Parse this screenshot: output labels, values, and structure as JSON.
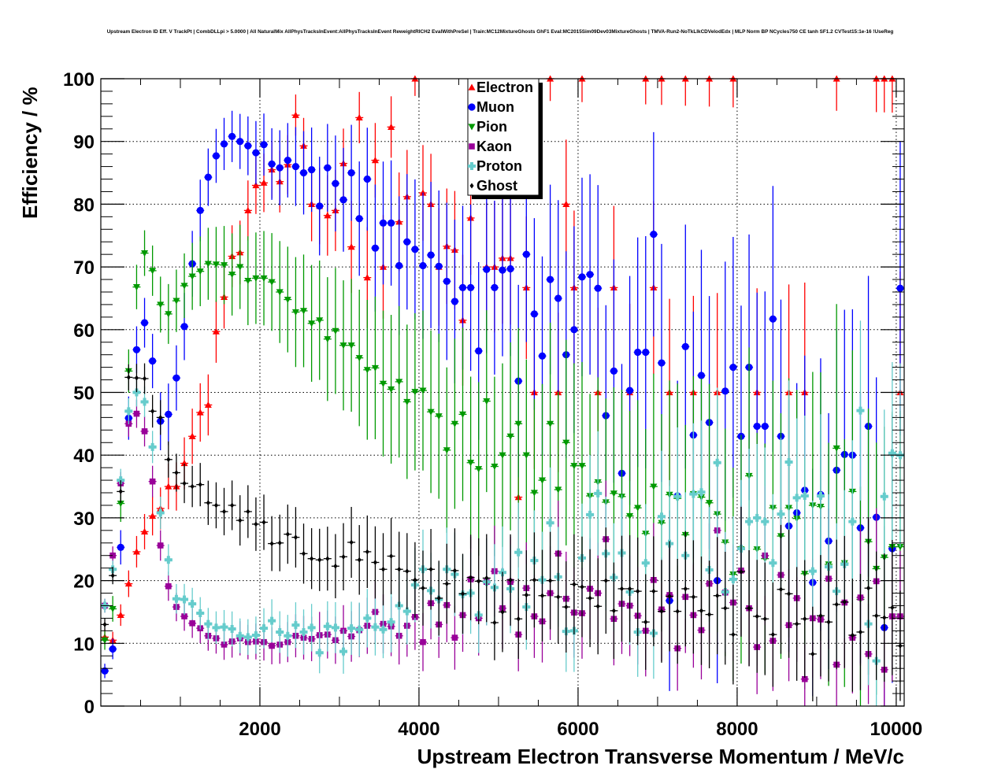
{
  "chart_data": {
    "type": "scatter",
    "title": "Upstream Electron ID Eff. V TrackPt | CombDLLpi > 5.0000 | All NaturalMix AllPhysTracksInEvent:AllPhysTracksInEvent ReweightRICH2 EvalWithPreSel | Train:MC12MixtureGhosts GhF1 Eval:MC2015Sim09Dev03MixtureGhosts | TMVA-Run2-NoTkLlkCDVelodEdx | MLP Norm BP NCycles750 CE tanh SF1.2 CVTest15:1e-16 !UseReg",
    "xlabel": "Upstream Electron Transverse Momentum / MeV/c",
    "ylabel": "Efficiency / %",
    "xlim": [
      0,
      10100
    ],
    "ylim": [
      0,
      100
    ],
    "x_ticks": [
      "2000",
      "4000",
      "6000",
      "8000",
      "10000"
    ],
    "y_ticks": [
      "0",
      "10",
      "20",
      "30",
      "40",
      "50",
      "60",
      "70",
      "80",
      "90",
      "100"
    ],
    "grid": true,
    "legend_position": "top-center",
    "bin_width": 100,
    "x_first_bin_center": 50,
    "series": [
      {
        "name": "Electron",
        "color": "#ff0000",
        "marker": "triangle-up",
        "values": [
          11,
          10.5,
          14.5,
          19.5,
          24.6,
          27.8,
          30.3,
          31.5,
          35,
          35,
          38.7,
          43,
          46.8,
          48,
          59.7,
          65.2,
          71.7,
          72.3,
          79,
          83,
          83.4,
          85.5,
          83.6,
          86.3,
          94.2,
          89.3,
          80,
          79.7,
          78.2,
          79,
          86.5,
          73.2,
          93.8,
          68.3,
          87,
          70,
          92.3,
          77.2,
          81.2,
          100,
          81.8,
          80,
          70,
          73.3,
          72.7,
          61.5,
          77.8,
          null,
          70,
          70,
          71.4,
          71.4,
          33.3,
          66.7,
          50,
          null,
          100,
          50,
          80,
          66.7,
          100,
          null,
          50,
          null,
          66.7,
          null,
          50,
          null,
          100,
          66.7,
          100,
          50,
          null,
          100,
          50,
          null,
          100,
          50,
          null,
          100,
          null,
          null,
          50,
          null,
          null,
          null,
          50,
          null,
          50,
          null,
          null,
          null,
          100,
          null,
          null,
          null,
          null,
          100,
          100,
          100,
          50
        ]
      },
      {
        "name": "Muon",
        "color": "#0000ff",
        "marker": "circle",
        "values": [
          5.6,
          9.1,
          25.3,
          45.9,
          56.8,
          61.1,
          55,
          45.4,
          46.5,
          52.3,
          60.5,
          70.5,
          79,
          84.3,
          87.7,
          89.6,
          90.8,
          90,
          89.3,
          88.2,
          89.5,
          86.4,
          85.8,
          87,
          86,
          85,
          85.5,
          79.7,
          85.8,
          83.3,
          80.7,
          85,
          77.7,
          84,
          73,
          77,
          77,
          70.2,
          74,
          72.8,
          70.2,
          71.9,
          70.1,
          67.7,
          64.5,
          66.7,
          66.7,
          56.6,
          69.6,
          66.7,
          69.5,
          69.7,
          51.8,
          72,
          62.5,
          55.8,
          68,
          65,
          56,
          60,
          68.4,
          68.8,
          66.6,
          46.3,
          53.4,
          37.1,
          50.3,
          56.4,
          56.4,
          75.2,
          54.7,
          16.8,
          33.5,
          57.3,
          43.2,
          52.7,
          45.2,
          20,
          50.2,
          54,
          43,
          54,
          44.6,
          44.6,
          61.7,
          43,
          28.7,
          30.8,
          34.4,
          19.7,
          33.7,
          26.3,
          37.6,
          40.1,
          40,
          28.4,
          44.6,
          30.1,
          12.5,
          25.1,
          66.6
        ]
      },
      {
        "name": "Pion",
        "color": "#009900",
        "marker": "triangle-down",
        "values": [
          10.5,
          15.5,
          32.3,
          53.4,
          66.8,
          72.2,
          69.4,
          64,
          62.5,
          64.6,
          67,
          68.5,
          69.3,
          70.5,
          70.4,
          70.3,
          68.8,
          70,
          67.8,
          68.2,
          68.2,
          67.6,
          66,
          64.8,
          62.8,
          63,
          61,
          61.5,
          58.5,
          59.8,
          57.5,
          57.5,
          55.5,
          53.6,
          53.9,
          51.4,
          50.5,
          51.7,
          48.5,
          50.1,
          50.3,
          46.9,
          46.2,
          40.8,
          45,
          46.5,
          38.8,
          37.8,
          48.6,
          38.2,
          40,
          43,
          45,
          40,
          34,
          36,
          45,
          34.5,
          42,
          38.3,
          38.3,
          33.5,
          35.7,
          32.5,
          33.9,
          33.4,
          30.3,
          31.6,
          27.5,
          35,
          29.2,
          33.7,
          33.1,
          27.3,
          33.8,
          33.3,
          32.4,
          30.6,
          26.1,
          21,
          25,
          36.7,
          25,
          23.5,
          31.6,
          27.1,
          31.6,
          29.9,
          21.1,
          32,
          31.8,
          22.6,
          41.1,
          22.8,
          34.2,
          17,
          26.2,
          21.9,
          23.7,
          25.4,
          25.4
        ]
      },
      {
        "name": "Kaon",
        "color": "#990099",
        "marker": "square",
        "values": [
          16,
          24,
          35.5,
          45,
          46.6,
          43.8,
          35.8,
          25.6,
          19.1,
          15.8,
          14.3,
          13.2,
          12.4,
          11.2,
          10.8,
          9.8,
          10.3,
          10.8,
          10.2,
          10.3,
          10.2,
          9.6,
          9.8,
          10.2,
          11.2,
          10.9,
          10.7,
          11.3,
          11.4,
          10.5,
          12,
          11.1,
          12.1,
          12.8,
          15,
          13.1,
          12.7,
          11.2,
          12.8,
          14.2,
          10.2,
          16.4,
          13,
          16.1,
          10.9,
          14.5,
          20.2,
          14,
          19.8,
          21.5,
          15.6,
          19.8,
          11.4,
          18.8,
          14.3,
          13.5,
          18,
          24.3,
          17.1,
          14.9,
          14.8,
          18.7,
          18,
          26.6,
          13.9,
          16.3,
          16,
          14.4,
          12,
          20.1,
          15.4,
          17.7,
          9.2,
          17.4,
          14.5,
          12.1,
          19.5,
          28,
          18.1,
          16.5,
          21.6,
          15.6,
          9.4,
          24,
          10.4,
          20.9,
          12.9,
          17.2,
          4.3,
          14,
          13.8,
          20.3,
          6.6,
          16.5,
          10.9,
          17.3,
          8.3,
          19.9,
          5.8,
          14.3,
          14.3
        ]
      },
      {
        "name": "Proton",
        "color": "#66cccc",
        "marker": "cross",
        "values": [
          16,
          21.8,
          36,
          47,
          50,
          48.5,
          41.3,
          30.8,
          23.3,
          17.1,
          17,
          16.3,
          14.8,
          13.1,
          12.5,
          12.6,
          12.3,
          11.2,
          11,
          11.3,
          12.4,
          13.6,
          11.8,
          11.2,
          12.9,
          11.8,
          12.5,
          8.5,
          12.7,
          12.5,
          8.7,
          12.4,
          12.2,
          14,
          12.6,
          12.2,
          13.4,
          16,
          15.1,
          19.3,
          21.8,
          18.4,
          17,
          21.8,
          21,
          17.8,
          18,
          14.5,
          19.8,
          18.9,
          21.3,
          18.7,
          24.5,
          15.8,
          23.2,
          20.1,
          29.2,
          20.6,
          11.9,
          12,
          23.6,
          30.5,
          33.9,
          24.3,
          20.5,
          24.4,
          18.2,
          11.8,
          22.8,
          11.6,
          30.2,
          25.9,
          33.4,
          24,
          33.8,
          34.1,
          21.7,
          38.8,
          18.2,
          20.2,
          25.1,
          29.4,
          30,
          29.4,
          22.8,
          30.6,
          38.9,
          33.2,
          33.5,
          21.5,
          33.5,
          22.2,
          18.3,
          22.6,
          29.4,
          47.1,
          13.1,
          7.2,
          33.4,
          40.3,
          40
        ]
      },
      {
        "name": "Ghost",
        "color": "#000000",
        "marker": "diamond",
        "values": [
          13,
          20.8,
          34.2,
          52.4,
          52.3,
          52.2,
          47,
          46,
          39.3,
          37.2,
          35.5,
          35,
          35.3,
          32.4,
          32,
          31,
          32,
          29.6,
          31,
          29,
          29.3,
          25.9,
          26,
          27.4,
          26.9,
          24.3,
          23.5,
          23.3,
          23.5,
          22.3,
          23.8,
          26.1,
          23.3,
          24.6,
          22.9,
          21.8,
          23.9,
          21.8,
          21.5,
          20.1,
          18.8,
          21.8,
          17.2,
          19.5,
          21.6,
          17.9,
          20.5,
          19.9,
          20.4,
          13.3,
          15,
          20.1,
          13.9,
          17.7,
          20.1,
          17.6,
          20,
          17.4,
          15.8,
          19.4,
          19,
          17.2,
          15.9,
          20,
          15.2,
          18.7,
          18.7,
          18.3,
          13.4,
          18.3,
          15.1,
          17.5,
          15.1,
          18.7,
          17.4,
          15.2,
          14.6,
          17.6,
          15.6,
          11.4,
          21.4,
          15.6,
          14.3,
          13.9,
          11.4,
          18.6,
          17.9,
          13.1,
          13.9,
          8.3,
          14.4,
          13.4,
          16.2,
          16.6,
          11.3,
          11.8,
          18.8,
          14.4,
          14.1,
          15.7,
          9.6
        ]
      }
    ]
  }
}
